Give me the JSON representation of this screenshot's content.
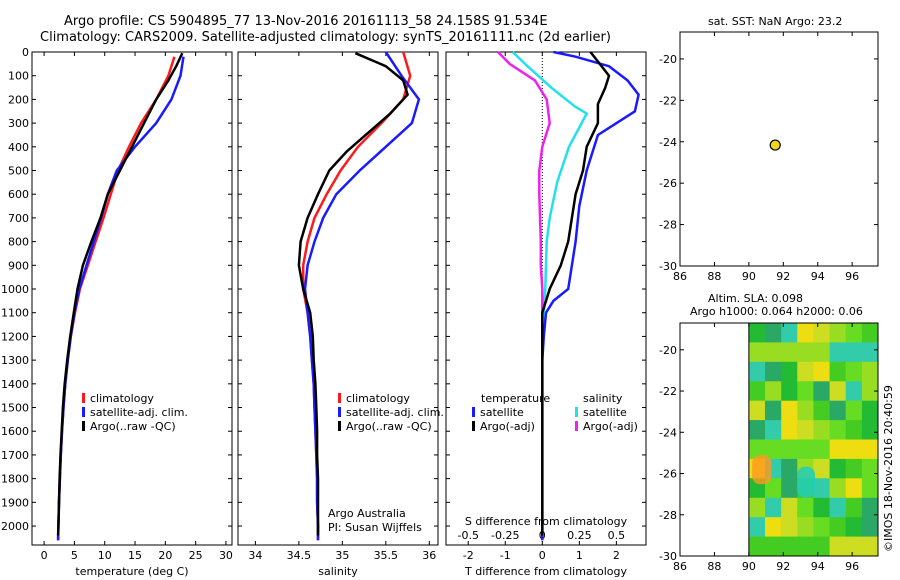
{
  "title_line1": "Argo profile: CS 5904895_77 13-Nov-2016 20161113_58 24.158S 91.534E",
  "title_line2": "Climatology: CARS2009. Satellite-adjusted climatology: synTS_20161111.nc (2d earlier)",
  "sst_title": "sat. SST: NaN Argo: 23.2",
  "sla_title1": "Altim. SLA: 0.098",
  "sla_title2": "Argo h1000: 0.064 h2000: 0.06",
  "credit": "©IMOS 18-Nov-2016 20:40:59",
  "colors": {
    "climatology": "#ff1a1a",
    "satellite": "#1a1aff",
    "argo": "#000000",
    "sal_satellite": "#22e0ee",
    "sal_argo": "#ee22ee"
  },
  "chart_data": [
    {
      "type": "line",
      "xlabel": "temperature (deg C)",
      "ylabel": "",
      "xlim": [
        -2,
        31
      ],
      "ylim": [
        2080,
        0
      ],
      "xticks": [
        0,
        5,
        10,
        15,
        20,
        25,
        30
      ],
      "yticks": [
        0,
        100,
        200,
        300,
        400,
        500,
        600,
        700,
        800,
        900,
        1000,
        1100,
        1200,
        1300,
        1400,
        1500,
        1600,
        1700,
        1800,
        1900,
        2000
      ],
      "legend": [
        "climatology",
        "satellite-adj. clim.",
        "Argo(..raw -QC)"
      ],
      "series": [
        {
          "name": "climatology",
          "color": "#ff1a1a",
          "points": [
            [
              21.5,
              20
            ],
            [
              20.5,
              100
            ],
            [
              18.5,
              200
            ],
            [
              16,
              300
            ],
            [
              14,
              400
            ],
            [
              12.2,
              500
            ],
            [
              11,
              600
            ],
            [
              9.8,
              700
            ],
            [
              8.5,
              800
            ],
            [
              7.2,
              900
            ],
            [
              5.9,
              1000
            ],
            [
              5.1,
              1100
            ],
            [
              4.4,
              1200
            ],
            [
              3.9,
              1300
            ],
            [
              3.5,
              1400
            ],
            [
              3.2,
              1500
            ],
            [
              2.95,
              1600
            ],
            [
              2.75,
              1700
            ],
            [
              2.6,
              1800
            ],
            [
              2.45,
              1900
            ],
            [
              2.35,
              2000
            ],
            [
              2.3,
              2060
            ]
          ]
        },
        {
          "name": "satellite-adj. clim.",
          "color": "#1a1aff",
          "points": [
            [
              23,
              20
            ],
            [
              22.5,
              100
            ],
            [
              21,
              200
            ],
            [
              18.5,
              300
            ],
            [
              15,
              400
            ],
            [
              12,
              500
            ],
            [
              10.5,
              600
            ],
            [
              9.4,
              700
            ],
            [
              8.2,
              800
            ],
            [
              7,
              900
            ],
            [
              5.8,
              1000
            ],
            [
              5,
              1100
            ],
            [
              4.4,
              1200
            ],
            [
              3.9,
              1300
            ],
            [
              3.5,
              1400
            ],
            [
              3.2,
              1500
            ],
            [
              2.95,
              1600
            ],
            [
              2.75,
              1700
            ],
            [
              2.6,
              1800
            ],
            [
              2.45,
              1900
            ],
            [
              2.35,
              2000
            ],
            [
              2.3,
              2060
            ]
          ]
        },
        {
          "name": "Argo(..raw -QC)",
          "color": "#000000",
          "points": [
            [
              22.8,
              5
            ],
            [
              21.8,
              60
            ],
            [
              20.5,
              120
            ],
            [
              18.5,
              200
            ],
            [
              16.5,
              300
            ],
            [
              14.5,
              400
            ],
            [
              12.5,
              500
            ],
            [
              10.5,
              600
            ],
            [
              9.3,
              700
            ],
            [
              7.8,
              800
            ],
            [
              6.4,
              900
            ],
            [
              5.5,
              1000
            ],
            [
              4.9,
              1100
            ],
            [
              4.3,
              1200
            ],
            [
              3.8,
              1300
            ],
            [
              3.4,
              1400
            ],
            [
              3.1,
              1500
            ],
            [
              2.9,
              1600
            ],
            [
              2.7,
              1700
            ],
            [
              2.55,
              1800
            ],
            [
              2.45,
              1900
            ],
            [
              2.35,
              2000
            ],
            [
              2.3,
              2040
            ]
          ]
        }
      ]
    },
    {
      "type": "line",
      "xlabel": "salinity",
      "ylabel": "",
      "xlim": [
        33.8,
        36.1
      ],
      "ylim": [
        2080,
        0
      ],
      "xticks": [
        34,
        34.5,
        35,
        35.5,
        36
      ],
      "legend": [
        "climatology",
        "satellite-adj. clim.",
        "Argo(..raw -QC)"
      ],
      "annotation": [
        "Argo Australia",
        "PI: Susan Wijffels"
      ],
      "series": [
        {
          "name": "climatology",
          "color": "#ff1a1a",
          "points": [
            [
              35.7,
              0
            ],
            [
              35.78,
              100
            ],
            [
              35.7,
              200
            ],
            [
              35.45,
              300
            ],
            [
              35.18,
              400
            ],
            [
              34.98,
              500
            ],
            [
              34.82,
              600
            ],
            [
              34.68,
              700
            ],
            [
              34.6,
              800
            ],
            [
              34.55,
              900
            ],
            [
              34.55,
              1000
            ],
            [
              34.6,
              1100
            ],
            [
              34.63,
              1200
            ],
            [
              34.65,
              1300
            ],
            [
              34.67,
              1400
            ],
            [
              34.68,
              1500
            ],
            [
              34.69,
              1600
            ],
            [
              34.7,
              1700
            ],
            [
              34.71,
              1800
            ],
            [
              34.71,
              1900
            ],
            [
              34.72,
              2000
            ],
            [
              34.72,
              2060
            ]
          ]
        },
        {
          "name": "satellite-adj. clim.",
          "color": "#1a1aff",
          "points": [
            [
              35.5,
              0
            ],
            [
              35.68,
              100
            ],
            [
              35.88,
              200
            ],
            [
              35.8,
              300
            ],
            [
              35.5,
              400
            ],
            [
              35.2,
              500
            ],
            [
              34.93,
              600
            ],
            [
              34.78,
              700
            ],
            [
              34.68,
              800
            ],
            [
              34.6,
              900
            ],
            [
              34.57,
              1000
            ],
            [
              34.6,
              1100
            ],
            [
              34.63,
              1200
            ],
            [
              34.65,
              1300
            ],
            [
              34.67,
              1400
            ],
            [
              34.68,
              1500
            ],
            [
              34.69,
              1600
            ],
            [
              34.7,
              1700
            ],
            [
              34.71,
              1800
            ],
            [
              34.71,
              1900
            ],
            [
              34.72,
              2000
            ],
            [
              34.72,
              2060
            ]
          ]
        },
        {
          "name": "Argo(..raw -QC)",
          "color": "#000000",
          "points": [
            [
              35.15,
              5
            ],
            [
              35.5,
              60
            ],
            [
              35.7,
              120
            ],
            [
              35.75,
              180
            ],
            [
              35.55,
              260
            ],
            [
              35.3,
              340
            ],
            [
              35.05,
              420
            ],
            [
              34.85,
              500
            ],
            [
              34.72,
              600
            ],
            [
              34.6,
              700
            ],
            [
              34.52,
              800
            ],
            [
              34.5,
              900
            ],
            [
              34.55,
              1000
            ],
            [
              34.63,
              1100
            ],
            [
              34.66,
              1200
            ],
            [
              34.67,
              1300
            ],
            [
              34.69,
              1400
            ],
            [
              34.7,
              1500
            ],
            [
              34.71,
              1600
            ],
            [
              34.71,
              1700
            ],
            [
              34.72,
              1800
            ],
            [
              34.72,
              1900
            ],
            [
              34.72,
              2000
            ],
            [
              34.72,
              2040
            ]
          ]
        }
      ]
    },
    {
      "type": "line",
      "xlabel": "T difference from climatology",
      "x2label": "S difference from climatology",
      "ylabel": "",
      "xlim": [
        -2.6,
        2.8
      ],
      "ylim": [
        2080,
        0
      ],
      "xticks": [
        -2,
        -1,
        0,
        1,
        2
      ],
      "x2lim": [
        -0.65,
        0.7
      ],
      "x2ticks": [
        -0.5,
        -0.25,
        0,
        0.25,
        0.5
      ],
      "legend_groups": [
        "temperature",
        "salinity"
      ],
      "legend": [
        "satellite",
        "Argo(-adj)",
        "satellite",
        "Argo(-adj)"
      ],
      "series": [
        {
          "name": "temperature satellite",
          "color": "#1a1aff",
          "axis": "T",
          "points": [
            [
              0.3,
              0
            ],
            [
              0.9,
              20
            ],
            [
              1.8,
              60
            ],
            [
              2.3,
              120
            ],
            [
              2.6,
              180
            ],
            [
              2.5,
              250
            ],
            [
              1.5,
              350
            ],
            [
              1.2,
              500
            ],
            [
              1.0,
              650
            ],
            [
              0.9,
              800
            ],
            [
              0.8,
              900
            ],
            [
              0.7,
              1000
            ],
            [
              0.3,
              1050
            ],
            [
              0.1,
              1100
            ],
            [
              0.04,
              1200
            ],
            [
              0,
              1300
            ],
            [
              0,
              2060
            ]
          ]
        },
        {
          "name": "temperature Argo(-adj)",
          "color": "#000000",
          "axis": "T",
          "points": [
            [
              1.3,
              0
            ],
            [
              1.5,
              40
            ],
            [
              1.8,
              100
            ],
            [
              1.7,
              150
            ],
            [
              1.5,
              220
            ],
            [
              1.5,
              300
            ],
            [
              1.2,
              400
            ],
            [
              1.1,
              500
            ],
            [
              0.9,
              600
            ],
            [
              0.8,
              700
            ],
            [
              0.7,
              800
            ],
            [
              0.5,
              900
            ],
            [
              0.2,
              1000
            ],
            [
              0,
              1100
            ],
            [
              0,
              2040
            ]
          ]
        }
      ],
      "series_salinity": [
        {
          "name": "salinity satellite",
          "color": "#22e0ee",
          "axis": "S",
          "points": [
            [
              -0.2,
              0
            ],
            [
              -0.1,
              60
            ],
            [
              0.06,
              150
            ],
            [
              0.22,
              230
            ],
            [
              0.3,
              260
            ],
            [
              0.18,
              400
            ],
            [
              0.1,
              550
            ],
            [
              0.05,
              700
            ],
            [
              0.03,
              800
            ],
            [
              0.02,
              1000
            ],
            [
              0,
              1200
            ],
            [
              0,
              2060
            ]
          ]
        },
        {
          "name": "salinity Argo(-adj)",
          "color": "#ee22ee",
          "axis": "S",
          "points": [
            [
              -0.3,
              0
            ],
            [
              -0.22,
              50
            ],
            [
              -0.05,
              120
            ],
            [
              0.03,
              200
            ],
            [
              0.05,
              300
            ],
            [
              0,
              400
            ],
            [
              -0.02,
              500
            ],
            [
              -0.02,
              600
            ],
            [
              -0.01,
              800
            ],
            [
              -0.01,
              900
            ],
            [
              0,
              1000
            ],
            [
              0,
              2040
            ]
          ]
        }
      ]
    },
    {
      "type": "scatter",
      "title": "sat. SST: NaN Argo: 23.2",
      "xlim": [
        86,
        97.5
      ],
      "ylim": [
        -30,
        -18.7
      ],
      "xticks": [
        86,
        88,
        90,
        92,
        94,
        96
      ],
      "yticks": [
        -20,
        -22,
        -24,
        -26,
        -28,
        -30
      ],
      "points": [
        [
          91.53,
          -24.16
        ]
      ]
    },
    {
      "type": "heatmap",
      "title": "Altim. SLA: 0.098",
      "subtitle": "Argo h1000: 0.064 h2000: 0.06",
      "xlim": [
        86,
        97.5
      ],
      "ylim": [
        -30,
        -18.7
      ],
      "xticks": [
        86,
        88,
        90,
        92,
        94,
        96
      ],
      "yticks": [
        -20,
        -22,
        -24,
        -26,
        -28,
        -30
      ],
      "data_xrange": [
        90,
        97.5
      ]
    }
  ]
}
